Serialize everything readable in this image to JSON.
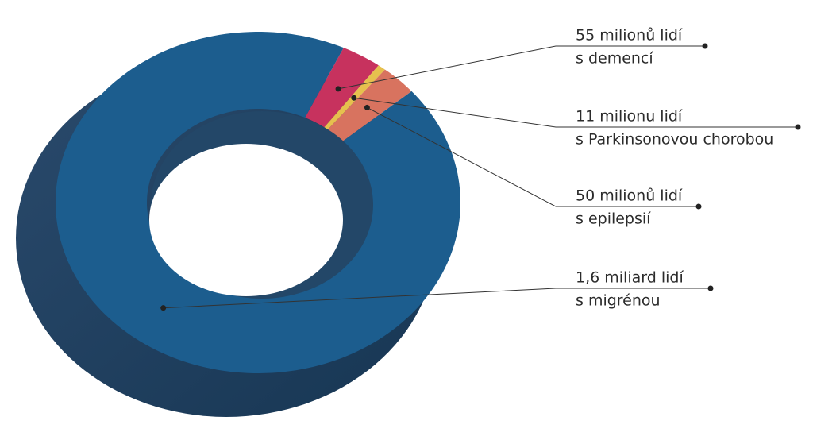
{
  "chart_data": {
    "type": "donut",
    "categories": [
      "s demencí",
      "s Parkinsonovou chorobou",
      "s epilepsií",
      "s migrénou"
    ],
    "values": [
      55000000,
      11000000,
      50000000,
      1600000000
    ],
    "value_labels": [
      "55 milionů lidí",
      "11 milionu lidí",
      "50 milionů lidí",
      "1,6 miliard lidí"
    ],
    "colors": [
      "#c7325e",
      "#e6c04e",
      "#d8735f",
      "#1c5d8e"
    ]
  }
}
